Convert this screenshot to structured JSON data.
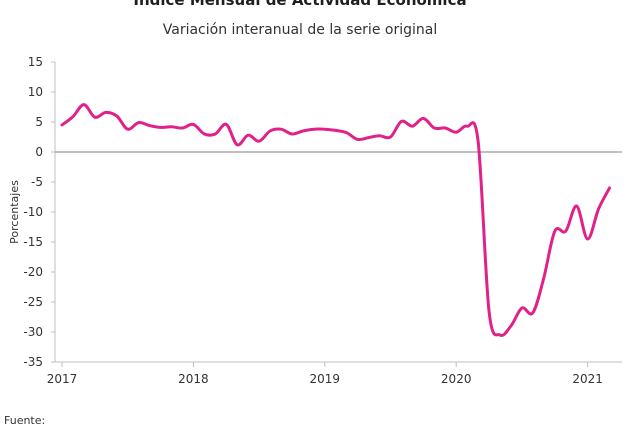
{
  "title": "Índice Mensual de  Actividad Económica",
  "subtitle": "Variación interanual de la serie original",
  "source_note": "Fuente:",
  "colors": {
    "series": "#e0218a",
    "axis": "#bfbfbf",
    "zero_line": "#7f7f7f",
    "text": "#333333"
  },
  "chart_data": {
    "type": "line",
    "title": "Índice Mensual de  Actividad Económica",
    "subtitle": "Variación interanual de la serie original",
    "xlabel": "",
    "ylabel": "Porcentajes",
    "ylim": [
      -35,
      15
    ],
    "y_ticks": [
      15,
      10,
      5,
      0,
      -5,
      -10,
      -15,
      -20,
      -25,
      -30,
      -35
    ],
    "xlim": [
      "2017-01",
      "2021-03"
    ],
    "x_tick_labels": [
      "2017",
      "2018",
      "2019",
      "2020",
      "2021"
    ],
    "grid": false,
    "legend": "none",
    "series": [
      {
        "x": [
          "2017-01",
          "2017-02",
          "2017-03",
          "2017-04",
          "2017-05",
          "2017-06",
          "2017-07",
          "2017-08",
          "2017-09",
          "2017-10",
          "2017-11",
          "2017-12",
          "2018-01",
          "2018-02",
          "2018-03",
          "2018-04",
          "2018-05",
          "2018-06",
          "2018-07",
          "2018-08",
          "2018-09",
          "2018-10",
          "2018-11",
          "2018-12",
          "2019-01",
          "2019-02",
          "2019-03",
          "2019-04",
          "2019-05",
          "2019-06",
          "2019-07",
          "2019-08",
          "2019-09",
          "2019-10",
          "2019-11",
          "2019-12",
          "2020-01",
          "2020-02",
          "2020-03",
          "2020-04",
          "2020-05",
          "2020-06",
          "2020-07",
          "2020-08",
          "2020-09",
          "2020-10",
          "2020-11",
          "2020-12",
          "2021-01",
          "2021-02",
          "2021-03"
        ],
        "values": [
          4.5,
          5.9,
          7.9,
          5.8,
          6.6,
          6.0,
          3.8,
          4.9,
          4.4,
          4.1,
          4.2,
          4.0,
          4.6,
          3.0,
          3.0,
          4.6,
          1.2,
          2.8,
          1.8,
          3.5,
          3.8,
          3.0,
          3.5,
          3.8,
          3.8,
          3.6,
          3.2,
          2.1,
          2.4,
          2.7,
          2.5,
          5.1,
          4.3,
          5.6,
          4.0,
          4.0,
          3.3,
          4.3,
          1.8,
          -26.5,
          -30.5,
          -29.0,
          -26.0,
          -26.8,
          -21.0,
          -13.2,
          -13.2,
          -9.0,
          -14.5,
          -9.5,
          -6.0
        ]
      }
    ]
  }
}
